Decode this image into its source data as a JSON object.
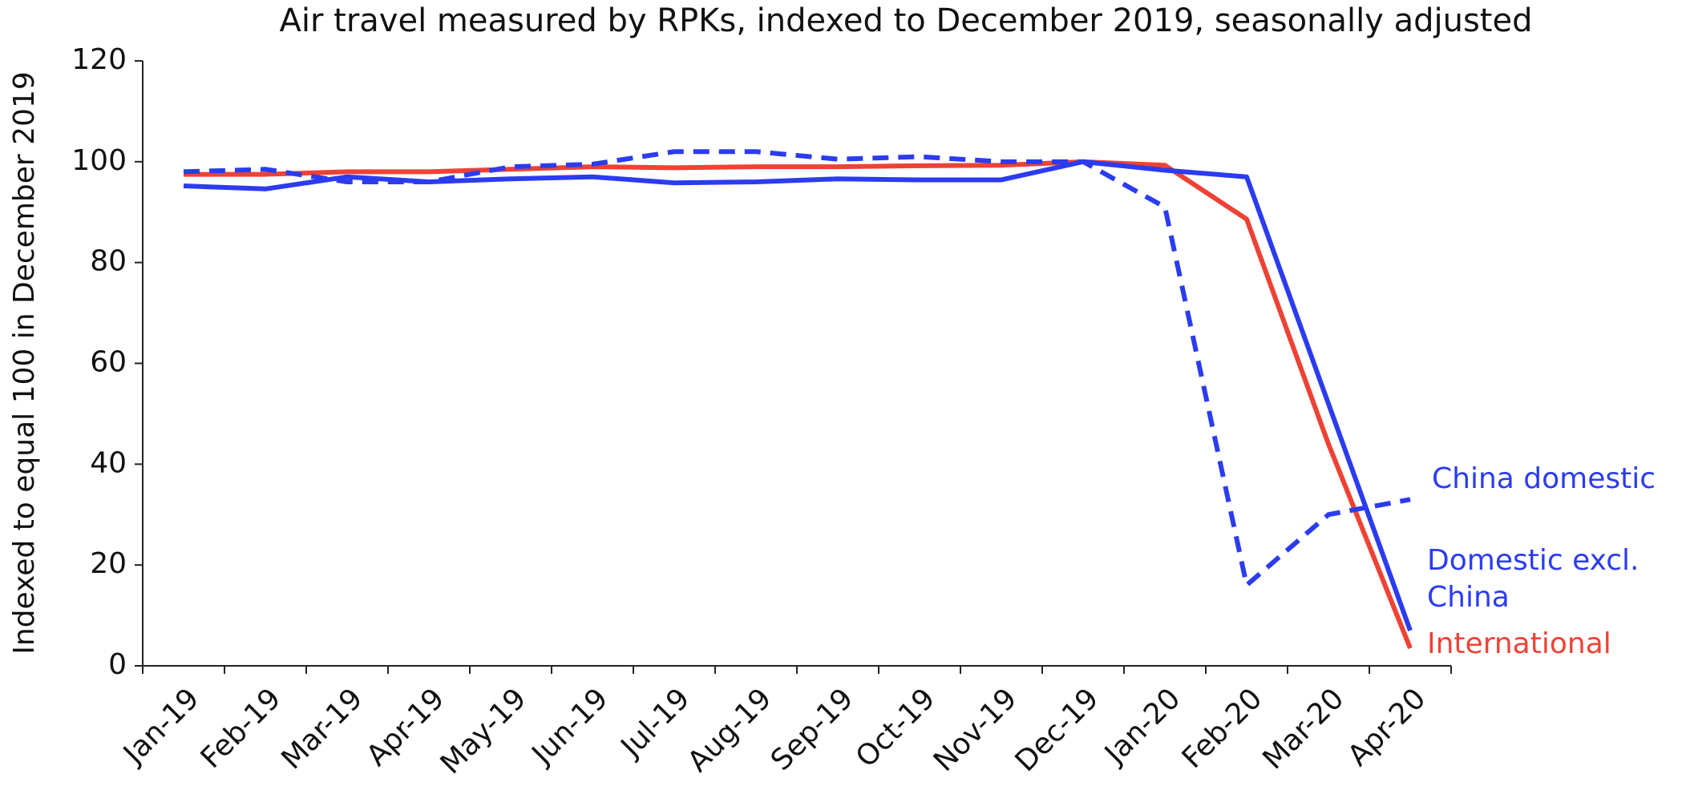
{
  "chart_data": {
    "type": "line",
    "title": "Air travel measured by RPKs, indexed to December 2019, seasonally adjusted",
    "y_label": "Indexed to equal 100 in December 2019",
    "categories": [
      "Jan-19",
      "Feb-19",
      "Mar-19",
      "Apr-19",
      "May-19",
      "Jun-19",
      "Jul-19",
      "Aug-19",
      "Sep-19",
      "Oct-19",
      "Nov-19",
      "Dec-19",
      "Jan-20",
      "Feb-20",
      "Mar-20",
      "Apr-20"
    ],
    "series": [
      {
        "name": "International",
        "color": "#ee4235",
        "dash": false,
        "values": [
          97.5,
          97.5,
          98,
          98,
          98.5,
          99,
          98.8,
          99,
          99,
          99.2,
          99.3,
          100,
          99.3,
          88.6,
          44,
          3.5
        ]
      },
      {
        "name": "Domestic excl. China",
        "color": "#2b3cf0",
        "dash": false,
        "values": [
          95.2,
          94.6,
          97,
          96,
          96.6,
          97,
          95.8,
          96,
          96.6,
          96.4,
          96.4,
          100,
          98.3,
          97,
          52,
          7
        ]
      },
      {
        "name": "China domestic",
        "color": "#2b3cf0",
        "dash": true,
        "values": [
          98,
          98.5,
          96,
          96,
          99,
          99.5,
          102,
          102,
          100.5,
          101,
          100,
          100,
          91,
          16,
          30,
          33
        ]
      }
    ],
    "ylim": [
      0,
      120
    ],
    "yticks": [
      0,
      20,
      40,
      60,
      80,
      100,
      120
    ]
  }
}
